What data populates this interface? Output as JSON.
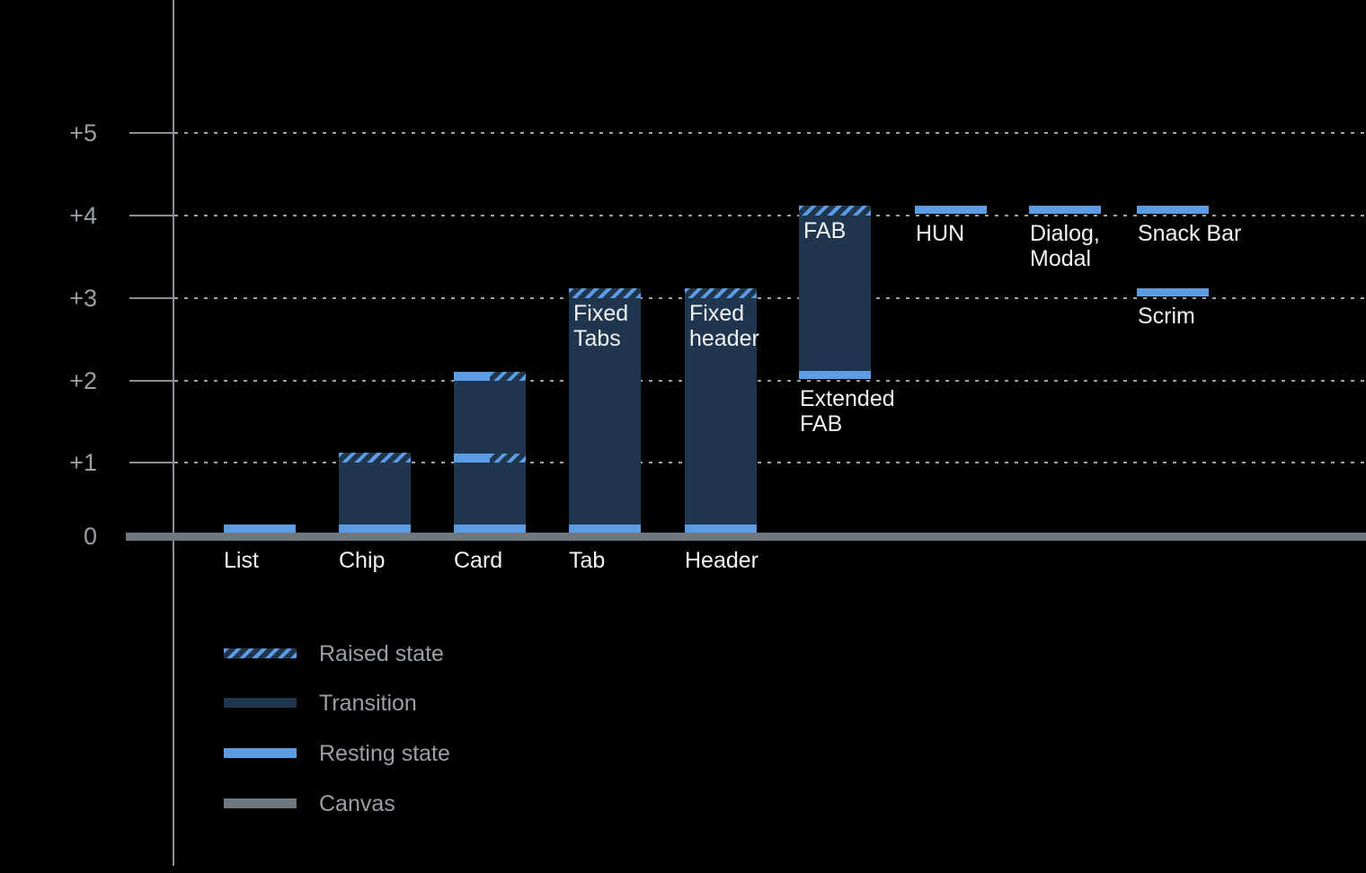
{
  "chart_data": {
    "type": "bar",
    "title": "",
    "xlabel": "",
    "ylabel": "",
    "ylim": [
      0,
      5.5
    ],
    "grid": "dotted horizontal lines at each elevation level",
    "legend_position": "bottom-left",
    "axis": {
      "ticks": [
        {
          "label": "+5",
          "level": 5
        },
        {
          "label": "+4",
          "level": 4
        },
        {
          "label": "+3",
          "level": 3
        },
        {
          "label": "+2",
          "level": 2
        },
        {
          "label": "+1",
          "level": 1
        },
        {
          "label": "0",
          "level": 0
        }
      ]
    },
    "columns": [
      {
        "label": "List",
        "bands": [
          {
            "kind": "resting",
            "level": 0
          }
        ],
        "labels": [
          {
            "text": "List",
            "placement": "baseline"
          }
        ]
      },
      {
        "label": "Chip",
        "transition": {
          "from": 0,
          "to": 1
        },
        "bands": [
          {
            "kind": "resting",
            "level": 0
          },
          {
            "kind": "raised",
            "level": 1
          }
        ],
        "labels": [
          {
            "text": "Chip",
            "placement": "baseline"
          }
        ]
      },
      {
        "label": "Card",
        "transition": {
          "from": 0,
          "to": 2
        },
        "bands": [
          {
            "kind": "resting",
            "level": 0
          },
          {
            "kind": "split",
            "level": 1
          },
          {
            "kind": "split",
            "level": 2
          }
        ],
        "labels": [
          {
            "text": "Card",
            "placement": "baseline"
          }
        ]
      },
      {
        "label": "Tab",
        "transition": {
          "from": 0,
          "to": 3
        },
        "bands": [
          {
            "kind": "resting",
            "level": 0
          },
          {
            "kind": "raised",
            "level": 3
          }
        ],
        "labels": [
          {
            "text": "Tab",
            "placement": "baseline"
          },
          {
            "text": "Fixed\nTabs",
            "placement": "inside"
          }
        ]
      },
      {
        "label": "Header",
        "transition": {
          "from": 0,
          "to": 3
        },
        "bands": [
          {
            "kind": "resting",
            "level": 0
          },
          {
            "kind": "raised",
            "level": 3
          }
        ],
        "labels": [
          {
            "text": "Header",
            "placement": "baseline"
          },
          {
            "text": "Fixed\nheader",
            "placement": "inside"
          }
        ]
      },
      {
        "label": "FAB",
        "transition": {
          "from": 2,
          "to": 4
        },
        "bands": [
          {
            "kind": "resting",
            "level": 2
          },
          {
            "kind": "raised",
            "level": 4
          }
        ],
        "labels": [
          {
            "text": "FAB",
            "placement": "inside"
          },
          {
            "text": "Extended\nFAB",
            "placement": "below",
            "level": 2
          }
        ]
      },
      {
        "label": "HUN",
        "bands": [
          {
            "kind": "resting",
            "level": 4
          }
        ],
        "labels": [
          {
            "text": "HUN",
            "placement": "below",
            "level": 4
          }
        ]
      },
      {
        "label": "Dialog, Modal",
        "bands": [
          {
            "kind": "resting",
            "level": 4
          }
        ],
        "labels": [
          {
            "text": "Dialog,\nModal",
            "placement": "below",
            "level": 4
          }
        ]
      },
      {
        "label": "Snack Bar",
        "bands": [
          {
            "kind": "resting",
            "level": 4
          }
        ],
        "labels": [
          {
            "text": "Snack Bar",
            "placement": "below",
            "level": 4
          }
        ]
      },
      {
        "label": "Scrim",
        "bands": [
          {
            "kind": "resting",
            "level": 3
          }
        ],
        "labels": [
          {
            "text": "Scrim",
            "placement": "below",
            "level": 3
          }
        ]
      }
    ]
  },
  "legend": {
    "items": [
      {
        "kind": "raised",
        "label": "Raised state"
      },
      {
        "kind": "transition",
        "label": "Transition"
      },
      {
        "kind": "resting",
        "label": "Resting state"
      },
      {
        "kind": "canvas",
        "label": "Canvas"
      }
    ]
  },
  "colors": {
    "background": "#000000",
    "resting_blue": "#5C9CE4",
    "transition_navy": "#1F364E",
    "canvas_gray": "#6E767E",
    "axis_gray": "#8B9097",
    "tick_label_gray": "#9AA0A6",
    "grid_dot_gray": "#9EA3A8",
    "bar_label_white": "#F1F3F4"
  }
}
